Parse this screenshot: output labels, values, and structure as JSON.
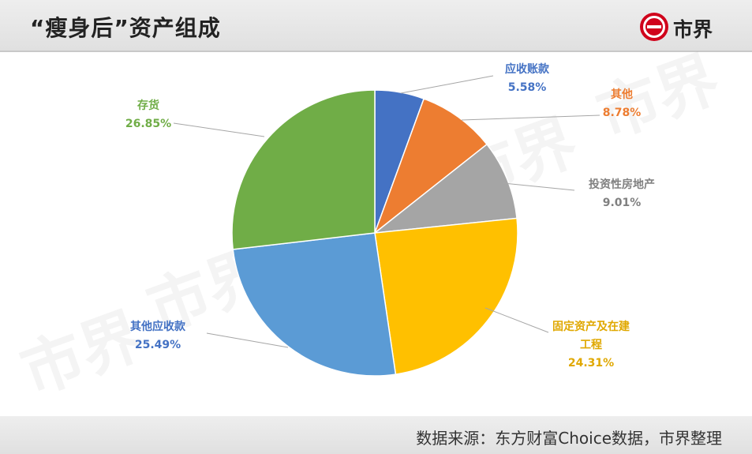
{
  "title": "“瘦身后”资产组成",
  "logo_text": "市界",
  "source": "数据来源：东方财富Choice数据，市界整理",
  "chart_data": {
    "type": "pie",
    "slices": [
      {
        "label_lines": [
          "应收账款"
        ],
        "value": 5.58,
        "display": "5.58%",
        "color": "#4472C4",
        "label_color": "#4472C4"
      },
      {
        "label_lines": [
          "其他"
        ],
        "value": 8.78,
        "display": "8.78%",
        "color": "#ED7D31",
        "label_color": "#ED7D31"
      },
      {
        "label_lines": [
          "投资性房地产"
        ],
        "value": 9.01,
        "display": "9.01%",
        "color": "#A5A5A5",
        "label_color": "#808080"
      },
      {
        "label_lines": [
          "固定资产及在建",
          "工程"
        ],
        "value": 24.31,
        "display": "24.31%",
        "color": "#FFC000",
        "label_color": "#E0A800"
      },
      {
        "label_lines": [
          "其他应收款"
        ],
        "value": 25.49,
        "display": "25.49%",
        "color": "#5B9BD5",
        "label_color": "#4472C4"
      },
      {
        "label_lines": [
          "存货"
        ],
        "value": 26.85,
        "display": "26.85%",
        "color": "#70AD47",
        "label_color": "#70AD47"
      }
    ]
  }
}
